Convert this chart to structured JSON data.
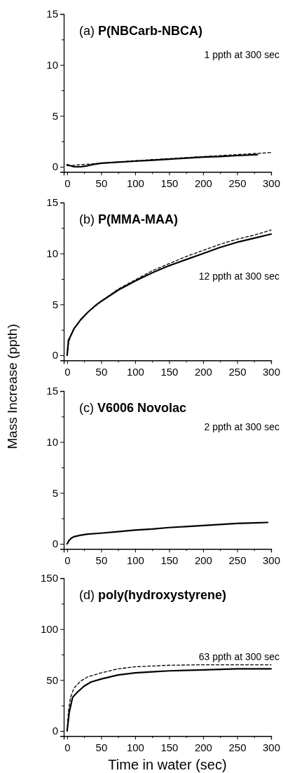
{
  "chart_data": [
    {
      "type": "line",
      "title": "(a) P(NBCarb-NBCA)",
      "annotations": [
        "1 ppth at 300 sec"
      ],
      "xlim": [
        -5,
        300
      ],
      "ylim": [
        -0.5,
        15
      ],
      "xticks": [
        0,
        {
          "value": 25,
          "label": null
        },
        50,
        {
          "value": 75,
          "label": null
        },
        100,
        {
          "value": 125,
          "label": null
        },
        150,
        {
          "value": 175,
          "label": null
        },
        200,
        {
          "value": 225,
          "label": null
        },
        250,
        {
          "value": 275,
          "label": null
        },
        300
      ],
      "yticks": [
        0,
        {
          "value": 2.5,
          "label": null
        },
        5,
        {
          "value": 7.5,
          "label": null
        },
        10,
        {
          "value": 12.5,
          "label": null
        },
        15
      ],
      "series": [
        {
          "color": "#000000",
          "line_style": "solid",
          "x": [
            0,
            5,
            10,
            20,
            30,
            40,
            50,
            75,
            100,
            125,
            150,
            175,
            200,
            225,
            250,
            280
          ],
          "values": [
            0.2,
            0.1,
            0.0,
            0.0,
            0.1,
            0.25,
            0.35,
            0.45,
            0.55,
            0.65,
            0.75,
            0.85,
            0.95,
            1.0,
            1.1,
            1.2
          ]
        },
        {
          "color": "#000000",
          "line_style": "dashed",
          "x": [
            0,
            50,
            100,
            150,
            200,
            250,
            300
          ],
          "values": [
            0.1,
            0.35,
            0.6,
            0.8,
            1.0,
            1.2,
            1.4
          ]
        }
      ]
    },
    {
      "type": "line",
      "title": "(b) P(MMA-MAA)",
      "ylabel": "Mass Increase (ppth)",
      "annotations": [
        "12 ppth at 300 sec"
      ],
      "xlim": [
        -5,
        300
      ],
      "ylim": [
        -0.5,
        15
      ],
      "xticks": [
        0,
        {
          "value": 25,
          "label": null
        },
        50,
        {
          "value": 75,
          "label": null
        },
        100,
        {
          "value": 125,
          "label": null
        },
        150,
        {
          "value": 175,
          "label": null
        },
        200,
        {
          "value": 225,
          "label": null
        },
        250,
        {
          "value": 275,
          "label": null
        },
        300
      ],
      "yticks": [
        0,
        {
          "value": 2.5,
          "label": null
        },
        5,
        {
          "value": 7.5,
          "label": null
        },
        10,
        {
          "value": 12.5,
          "label": null
        },
        15
      ],
      "series": [
        {
          "color": "#000000",
          "line_style": "solid",
          "x": [
            0,
            2,
            5,
            10,
            20,
            30,
            40,
            50,
            75,
            100,
            125,
            150,
            175,
            200,
            225,
            250,
            275,
            300
          ],
          "values": [
            0,
            1.5,
            1.9,
            2.6,
            3.5,
            4.2,
            4.8,
            5.3,
            6.4,
            7.3,
            8.1,
            8.8,
            9.4,
            10.0,
            10.6,
            11.1,
            11.5,
            11.9
          ]
        },
        {
          "color": "#000000",
          "line_style": "dashed",
          "x": [
            0,
            2,
            5,
            10,
            20,
            30,
            50,
            75,
            100,
            125,
            150,
            175,
            200,
            225,
            250,
            275,
            300
          ],
          "values": [
            0,
            1.2,
            1.9,
            2.6,
            3.5,
            4.2,
            5.3,
            6.5,
            7.4,
            8.3,
            9.0,
            9.7,
            10.3,
            10.9,
            11.4,
            11.8,
            12.3
          ]
        }
      ]
    },
    {
      "type": "line",
      "title": "(c) V6006 Novolac",
      "annotations": [
        "2 ppth at 300 sec"
      ],
      "xlim": [
        -5,
        300
      ],
      "ylim": [
        -0.5,
        15
      ],
      "xticks": [
        0,
        {
          "value": 25,
          "label": null
        },
        50,
        {
          "value": 75,
          "label": null
        },
        100,
        {
          "value": 125,
          "label": null
        },
        150,
        {
          "value": 175,
          "label": null
        },
        200,
        {
          "value": 225,
          "label": null
        },
        250,
        {
          "value": 275,
          "label": null
        },
        300
      ],
      "yticks": [
        0,
        {
          "value": 2.5,
          "label": null
        },
        5,
        {
          "value": 7.5,
          "label": null
        },
        10,
        {
          "value": 12.5,
          "label": null
        },
        15
      ],
      "series": [
        {
          "color": "#000000",
          "line_style": "solid",
          "x": [
            0,
            3,
            6,
            10,
            20,
            30,
            50,
            75,
            100,
            125,
            150,
            175,
            200,
            225,
            250,
            275,
            295
          ],
          "values": [
            0,
            0.35,
            0.55,
            0.7,
            0.85,
            0.95,
            1.05,
            1.2,
            1.35,
            1.45,
            1.6,
            1.7,
            1.8,
            1.9,
            2.0,
            2.05,
            2.1
          ]
        }
      ]
    },
    {
      "type": "line",
      "title": "(d) poly(hydroxystyrene)",
      "xlabel": "Time in water (sec)",
      "annotations": [
        "63 ppth at 300 sec"
      ],
      "xlim": [
        -5,
        300
      ],
      "ylim": [
        -5,
        150
      ],
      "xticks": [
        0,
        {
          "value": 25,
          "label": null
        },
        50,
        {
          "value": 75,
          "label": null
        },
        100,
        {
          "value": 125,
          "label": null
        },
        150,
        {
          "value": 175,
          "label": null
        },
        200,
        {
          "value": 225,
          "label": null
        },
        250,
        {
          "value": 275,
          "label": null
        },
        300
      ],
      "yticks": [
        0,
        {
          "value": 25,
          "label": null
        },
        50,
        {
          "value": 75,
          "label": null
        },
        100,
        {
          "value": 125,
          "label": null
        },
        150
      ],
      "series": [
        {
          "color": "#000000",
          "line_style": "solid",
          "x": [
            0,
            3,
            8,
            15,
            25,
            35,
            50,
            75,
            100,
            125,
            150,
            200,
            250,
            300
          ],
          "values": [
            0,
            18,
            33,
            38,
            44,
            48,
            51,
            55,
            57,
            58,
            59,
            60,
            61,
            61
          ]
        },
        {
          "color": "#000000",
          "line_style": "dashed",
          "x": [
            0,
            2,
            5,
            10,
            20,
            30,
            50,
            75,
            100,
            150,
            200,
            250,
            300
          ],
          "values": [
            0,
            20,
            33,
            42,
            49,
            53,
            57,
            61,
            63,
            64.5,
            65,
            65,
            65
          ]
        }
      ]
    }
  ]
}
